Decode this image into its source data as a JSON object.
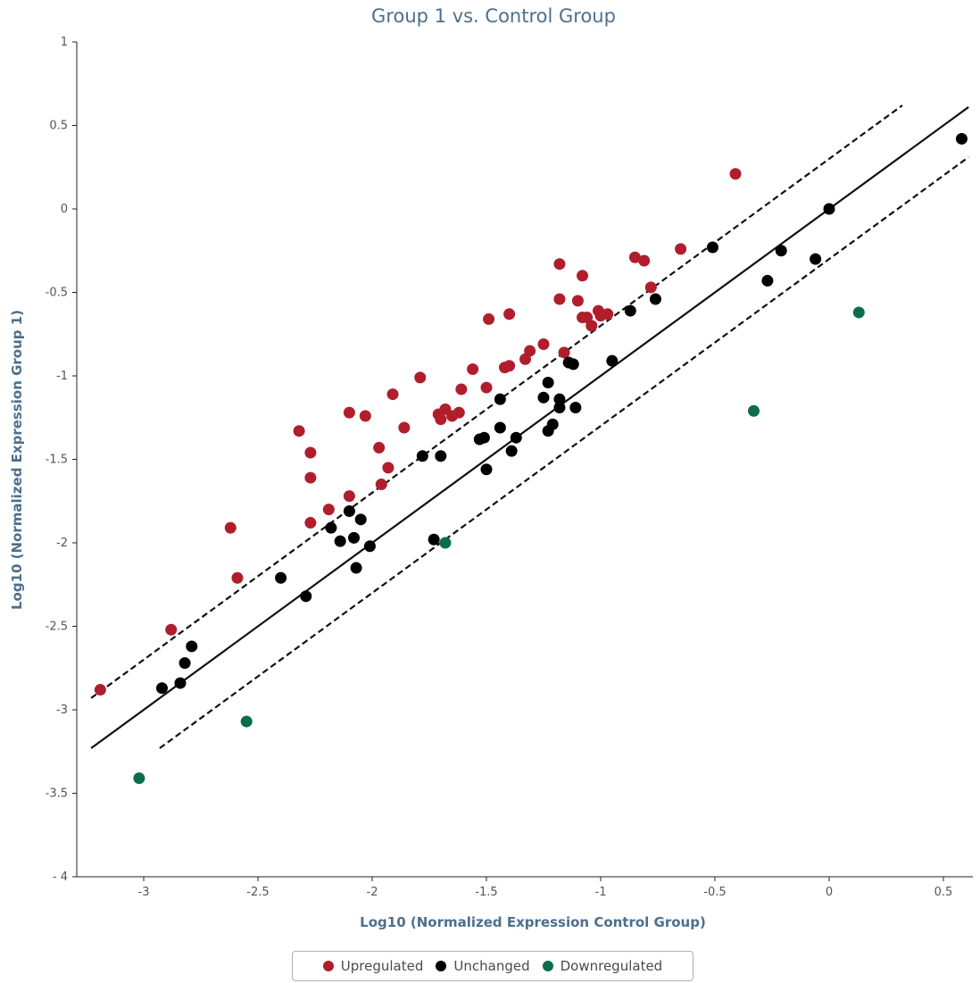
{
  "chart_data": {
    "type": "scatter",
    "title": "Group 1 vs. Control Group",
    "xlabel": "Log10 (Normalized Expression Control Group)",
    "ylabel": "Log10 (Normalized Expression Group 1)",
    "xlim": [
      -3.3,
      0.62
    ],
    "ylim": [
      -4,
      1
    ],
    "xticks": [
      -3,
      -2.5,
      -2,
      -1.5,
      -1,
      -0.5,
      0,
      0.5
    ],
    "xtick_labels": [
      "-3",
      "-2.5",
      "-2",
      "-1.5",
      "-1",
      "-0.5",
      "0",
      "0.5"
    ],
    "yticks": [
      -4,
      -3.5,
      -3,
      -2.5,
      -2,
      -1.5,
      -1,
      -0.5,
      0,
      0.5,
      1
    ],
    "ytick_labels": [
      "- 4",
      "-3.5",
      "-3",
      "-2.5",
      "-2",
      "-1.5",
      "-1",
      "-0.5",
      "0",
      "0.5",
      "1"
    ],
    "grid": false,
    "legend_position": "bottom-center",
    "reference_lines": [
      {
        "style": "solid",
        "x": [
          -3.23,
          0.61
        ],
        "y": [
          -3.23,
          0.61
        ]
      },
      {
        "style": "dashed",
        "x": [
          -3.23,
          0.32
        ],
        "y": [
          -2.93,
          0.62
        ]
      },
      {
        "style": "dashed",
        "x": [
          -2.93,
          0.61
        ],
        "y": [
          -3.23,
          0.31
        ]
      }
    ],
    "series": [
      {
        "name": "Upregulated",
        "color": "#b01e2c",
        "points": [
          [
            -3.19,
            -2.88
          ],
          [
            -2.88,
            -2.52
          ],
          [
            -2.62,
            -1.91
          ],
          [
            -2.59,
            -2.21
          ],
          [
            -2.32,
            -1.33
          ],
          [
            -2.27,
            -1.46
          ],
          [
            -2.27,
            -1.61
          ],
          [
            -2.27,
            -1.88
          ],
          [
            -2.19,
            -1.8
          ],
          [
            -2.1,
            -1.22
          ],
          [
            -2.1,
            -1.72
          ],
          [
            -2.03,
            -1.24
          ],
          [
            -1.97,
            -1.43
          ],
          [
            -1.96,
            -1.65
          ],
          [
            -1.93,
            -1.55
          ],
          [
            -1.91,
            -1.11
          ],
          [
            -1.86,
            -1.31
          ],
          [
            -1.79,
            -1.01
          ],
          [
            -1.71,
            -1.23
          ],
          [
            -1.7,
            -1.26
          ],
          [
            -1.68,
            -1.2
          ],
          [
            -1.65,
            -1.24
          ],
          [
            -1.62,
            -1.22
          ],
          [
            -1.61,
            -1.08
          ],
          [
            -1.56,
            -0.96
          ],
          [
            -1.5,
            -1.07
          ],
          [
            -1.49,
            -0.66
          ],
          [
            -1.42,
            -0.95
          ],
          [
            -1.4,
            -0.63
          ],
          [
            -1.4,
            -0.94
          ],
          [
            -1.33,
            -0.9
          ],
          [
            -1.31,
            -0.85
          ],
          [
            -1.25,
            -0.81
          ],
          [
            -1.18,
            -0.33
          ],
          [
            -1.18,
            -0.54
          ],
          [
            -1.16,
            -0.86
          ],
          [
            -1.1,
            -0.55
          ],
          [
            -1.08,
            -0.4
          ],
          [
            -1.08,
            -0.65
          ],
          [
            -1.06,
            -0.65
          ],
          [
            -1.04,
            -0.7
          ],
          [
            -1.01,
            -0.61
          ],
          [
            -1.0,
            -0.64
          ],
          [
            -0.97,
            -0.63
          ],
          [
            -0.85,
            -0.29
          ],
          [
            -0.81,
            -0.31
          ],
          [
            -0.78,
            -0.47
          ],
          [
            -0.65,
            -0.24
          ],
          [
            -0.41,
            0.21
          ]
        ]
      },
      {
        "name": "Unchanged",
        "color": "#000000",
        "points": [
          [
            -2.92,
            -2.87
          ],
          [
            -2.84,
            -2.84
          ],
          [
            -2.82,
            -2.72
          ],
          [
            -2.79,
            -2.62
          ],
          [
            -2.4,
            -2.21
          ],
          [
            -2.29,
            -2.32
          ],
          [
            -2.18,
            -1.91
          ],
          [
            -2.14,
            -1.99
          ],
          [
            -2.1,
            -1.81
          ],
          [
            -2.08,
            -1.97
          ],
          [
            -2.07,
            -2.15
          ],
          [
            -2.05,
            -1.86
          ],
          [
            -2.01,
            -2.02
          ],
          [
            -1.78,
            -1.48
          ],
          [
            -1.73,
            -1.98
          ],
          [
            -1.7,
            -1.48
          ],
          [
            -1.53,
            -1.38
          ],
          [
            -1.51,
            -1.37
          ],
          [
            -1.5,
            -1.56
          ],
          [
            -1.44,
            -1.31
          ],
          [
            -1.44,
            -1.14
          ],
          [
            -1.39,
            -1.45
          ],
          [
            -1.37,
            -1.37
          ],
          [
            -1.25,
            -1.13
          ],
          [
            -1.23,
            -1.04
          ],
          [
            -1.23,
            -1.33
          ],
          [
            -1.21,
            -1.29
          ],
          [
            -1.18,
            -1.14
          ],
          [
            -1.18,
            -1.19
          ],
          [
            -1.14,
            -0.92
          ],
          [
            -1.12,
            -0.93
          ],
          [
            -1.11,
            -1.19
          ],
          [
            -0.95,
            -0.91
          ],
          [
            -0.87,
            -0.61
          ],
          [
            -0.76,
            -0.54
          ],
          [
            -0.51,
            -0.23
          ],
          [
            -0.27,
            -0.43
          ],
          [
            -0.21,
            -0.25
          ],
          [
            -0.06,
            -0.3
          ],
          [
            0.0,
            0.0
          ],
          [
            0.58,
            0.42
          ]
        ]
      },
      {
        "name": "Downregulated",
        "color": "#0a6e4a",
        "points": [
          [
            -3.02,
            -3.41
          ],
          [
            -2.55,
            -3.07
          ],
          [
            -1.68,
            -2.0
          ],
          [
            -0.33,
            -1.21
          ],
          [
            0.13,
            -0.62
          ]
        ]
      }
    ]
  },
  "legend": {
    "items": [
      {
        "label": "Upregulated",
        "color": "#b01e2c"
      },
      {
        "label": "Unchanged",
        "color": "#000000"
      },
      {
        "label": "Downregulated",
        "color": "#0a6e4a"
      }
    ]
  }
}
